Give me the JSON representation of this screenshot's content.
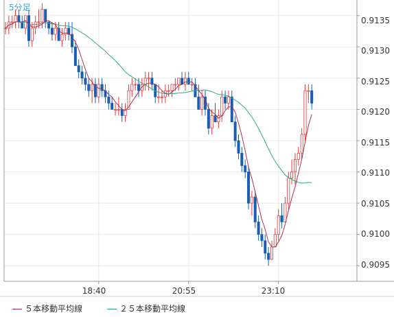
{
  "chart_data": {
    "type": "candlestick",
    "timeframe_label": "5分足",
    "y_ticks": [
      "0.9135",
      "0.9130",
      "0.9125",
      "0.9120",
      "0.9115",
      "0.9110",
      "0.9105",
      "0.9100",
      "0.9095"
    ],
    "y_tick_values": [
      0.9135,
      0.913,
      0.9125,
      0.912,
      0.9115,
      0.911,
      0.9105,
      0.91,
      0.9095
    ],
    "ylim": [
      0.90925,
      0.91375
    ],
    "x_ticks": [
      {
        "label": "18:40",
        "index": 28
      },
      {
        "label": "20:55",
        "index": 55
      },
      {
        "label": "23:10",
        "index": 82
      }
    ],
    "colors": {
      "up": "#e03a3a",
      "down": "#1a5eb4",
      "ma5": "#b0304f",
      "ma25": "#2aaa8a",
      "grid": "#e8e8e8",
      "frame": "#999999"
    },
    "candles": [
      [
        0.9133,
        0.9134,
        0.9132,
        0.9133
      ],
      [
        0.9133,
        0.9135,
        0.9132,
        0.9134
      ],
      [
        0.9134,
        0.9135,
        0.9133,
        0.9134
      ],
      [
        0.9134,
        0.9136,
        0.9133,
        0.9135
      ],
      [
        0.9135,
        0.9136,
        0.9133,
        0.9134
      ],
      [
        0.9134,
        0.9135,
        0.9133,
        0.9133
      ],
      [
        0.9133,
        0.9135,
        0.9132,
        0.9135
      ],
      [
        0.9135,
        0.9136,
        0.913,
        0.9131
      ],
      [
        0.9131,
        0.9134,
        0.913,
        0.9133
      ],
      [
        0.9133,
        0.9135,
        0.9132,
        0.9134
      ],
      [
        0.9134,
        0.9136,
        0.9133,
        0.9134
      ],
      [
        0.9134,
        0.9137,
        0.9133,
        0.9136
      ],
      [
        0.9136,
        0.9136,
        0.9133,
        0.9134
      ],
      [
        0.9134,
        0.9134,
        0.9132,
        0.9133
      ],
      [
        0.9133,
        0.9134,
        0.9131,
        0.9132
      ],
      [
        0.9132,
        0.9134,
        0.9131,
        0.9133
      ],
      [
        0.9133,
        0.9134,
        0.9131,
        0.9131
      ],
      [
        0.9131,
        0.9133,
        0.913,
        0.9132
      ],
      [
        0.9132,
        0.9134,
        0.9131,
        0.9133
      ],
      [
        0.9133,
        0.9134,
        0.9131,
        0.9132
      ],
      [
        0.9132,
        0.9134,
        0.9129,
        0.913
      ],
      [
        0.913,
        0.9131,
        0.9127,
        0.9127
      ],
      [
        0.9127,
        0.9128,
        0.9125,
        0.9126
      ],
      [
        0.9126,
        0.9127,
        0.9124,
        0.9125
      ],
      [
        0.9125,
        0.9126,
        0.9123,
        0.9124
      ],
      [
        0.9124,
        0.9125,
        0.9122,
        0.9123
      ],
      [
        0.9123,
        0.9125,
        0.9121,
        0.9124
      ],
      [
        0.9124,
        0.9125,
        0.9121,
        0.9122
      ],
      [
        0.9122,
        0.9125,
        0.9121,
        0.9124
      ],
      [
        0.9124,
        0.9125,
        0.9122,
        0.9123
      ],
      [
        0.9123,
        0.9124,
        0.9121,
        0.9122
      ],
      [
        0.9122,
        0.9123,
        0.912,
        0.9121
      ],
      [
        0.9121,
        0.9122,
        0.912,
        0.912
      ],
      [
        0.912,
        0.9121,
        0.9119,
        0.912
      ],
      [
        0.912,
        0.9122,
        0.9119,
        0.912
      ],
      [
        0.912,
        0.9121,
        0.9118,
        0.9119
      ],
      [
        0.9119,
        0.9121,
        0.9118,
        0.912
      ],
      [
        0.912,
        0.9124,
        0.912,
        0.9123
      ],
      [
        0.9123,
        0.9125,
        0.9122,
        0.9124
      ],
      [
        0.9124,
        0.9125,
        0.9123,
        0.9124
      ],
      [
        0.9124,
        0.9125,
        0.9122,
        0.9123
      ],
      [
        0.9123,
        0.9125,
        0.9122,
        0.9124
      ],
      [
        0.9124,
        0.9126,
        0.9123,
        0.9125
      ],
      [
        0.9125,
        0.9126,
        0.9123,
        0.9125
      ],
      [
        0.9125,
        0.9126,
        0.9123,
        0.9124
      ],
      [
        0.9124,
        0.9124,
        0.9121,
        0.9122
      ],
      [
        0.9122,
        0.9124,
        0.9121,
        0.9122
      ],
      [
        0.9122,
        0.9123,
        0.9121,
        0.9122
      ],
      [
        0.9122,
        0.9124,
        0.9121,
        0.9123
      ],
      [
        0.9123,
        0.9124,
        0.9122,
        0.9123
      ],
      [
        0.9123,
        0.9124,
        0.9122,
        0.9124
      ],
      [
        0.9124,
        0.9125,
        0.9123,
        0.9124
      ],
      [
        0.9124,
        0.9125,
        0.9123,
        0.9125
      ],
      [
        0.9125,
        0.9126,
        0.9124,
        0.9124
      ],
      [
        0.9124,
        0.9126,
        0.9123,
        0.9125
      ],
      [
        0.9125,
        0.9126,
        0.9124,
        0.9124
      ],
      [
        0.9124,
        0.9125,
        0.9123,
        0.9124
      ],
      [
        0.9124,
        0.9125,
        0.9122,
        0.9122
      ],
      [
        0.9122,
        0.9124,
        0.912,
        0.912
      ],
      [
        0.912,
        0.9123,
        0.9119,
        0.9122
      ],
      [
        0.9122,
        0.9123,
        0.9119,
        0.912
      ],
      [
        0.912,
        0.9121,
        0.9116,
        0.9117
      ],
      [
        0.9117,
        0.912,
        0.9116,
        0.9119
      ],
      [
        0.9119,
        0.9121,
        0.9118,
        0.9118
      ],
      [
        0.9118,
        0.912,
        0.9117,
        0.9119
      ],
      [
        0.9119,
        0.9123,
        0.9118,
        0.9122
      ],
      [
        0.9122,
        0.9123,
        0.912,
        0.9121
      ],
      [
        0.9121,
        0.9123,
        0.912,
        0.9122
      ],
      [
        0.9122,
        0.9123,
        0.9118,
        0.9118
      ],
      [
        0.9118,
        0.9119,
        0.9114,
        0.9115
      ],
      [
        0.9115,
        0.9116,
        0.9112,
        0.9113
      ],
      [
        0.9113,
        0.9114,
        0.911,
        0.9111
      ],
      [
        0.9111,
        0.9112,
        0.9109,
        0.911
      ],
      [
        0.911,
        0.9111,
        0.9104,
        0.9105
      ],
      [
        0.9105,
        0.9107,
        0.9103,
        0.9106
      ],
      [
        0.9106,
        0.9107,
        0.9101,
        0.9102
      ],
      [
        0.9102,
        0.9103,
        0.9099,
        0.91
      ],
      [
        0.91,
        0.9101,
        0.9098,
        0.9099
      ],
      [
        0.9099,
        0.91,
        0.9096,
        0.9097
      ],
      [
        0.9097,
        0.9098,
        0.9095,
        0.9096
      ],
      [
        0.9096,
        0.9099,
        0.9096,
        0.9098
      ],
      [
        0.9098,
        0.9101,
        0.9098,
        0.91
      ],
      [
        0.91,
        0.9104,
        0.9099,
        0.9103
      ],
      [
        0.9103,
        0.9105,
        0.9101,
        0.9102
      ],
      [
        0.9102,
        0.9106,
        0.9102,
        0.9105
      ],
      [
        0.9105,
        0.911,
        0.9104,
        0.9109
      ],
      [
        0.9109,
        0.9112,
        0.9108,
        0.911
      ],
      [
        0.911,
        0.9113,
        0.9108,
        0.9112
      ],
      [
        0.9112,
        0.9114,
        0.9111,
        0.9113
      ],
      [
        0.9113,
        0.9117,
        0.9112,
        0.9116
      ],
      [
        0.9116,
        0.9124,
        0.9115,
        0.9123
      ],
      [
        0.9123,
        0.9124,
        0.9121,
        0.9123
      ],
      [
        0.9123,
        0.9124,
        0.912,
        0.9121
      ]
    ]
  },
  "legend": [
    {
      "label": "５本移動平均線",
      "color": "#b0304f"
    },
    {
      "label": "２５本移動平均線",
      "color": "#2aaa8a"
    }
  ]
}
